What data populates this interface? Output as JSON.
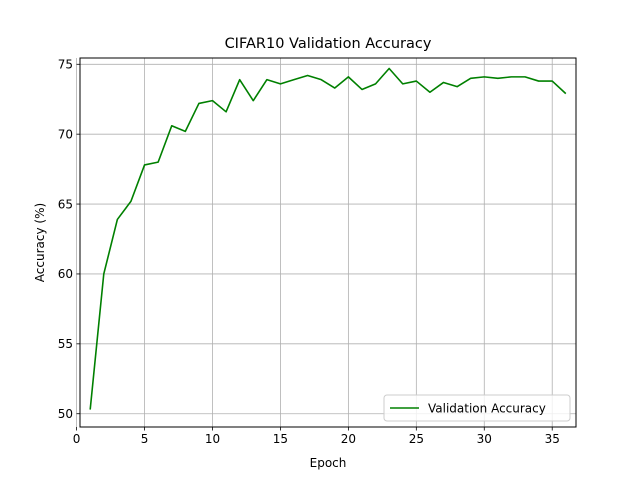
{
  "chart_data": {
    "type": "line",
    "title": "CIFAR10 Validation Accuracy",
    "xlabel": "Epoch",
    "ylabel": "Accuracy (%)",
    "xlim": [
      0.25,
      36.75
    ],
    "ylim": [
      49.05,
      75.45
    ],
    "xticks": [
      0,
      5,
      10,
      15,
      20,
      25,
      30,
      35
    ],
    "yticks": [
      50,
      55,
      60,
      65,
      70,
      75
    ],
    "grid": true,
    "legend_position": "lower-right",
    "series": [
      {
        "name": "Validation Accuracy",
        "color": "#008000",
        "x": [
          1,
          2,
          3,
          4,
          5,
          6,
          7,
          8,
          9,
          10,
          11,
          12,
          13,
          14,
          15,
          16,
          17,
          18,
          19,
          20,
          21,
          22,
          23,
          24,
          25,
          26,
          27,
          28,
          29,
          30,
          31,
          32,
          33,
          34,
          35,
          36
        ],
        "y": [
          50.3,
          60.0,
          63.9,
          65.2,
          67.8,
          68.0,
          70.6,
          70.2,
          72.2,
          72.4,
          71.6,
          73.9,
          72.4,
          73.9,
          73.6,
          73.9,
          74.2,
          73.9,
          73.3,
          74.1,
          73.2,
          73.6,
          74.7,
          73.6,
          73.8,
          73.0,
          73.7,
          73.4,
          74.0,
          74.1,
          74.0,
          74.1,
          74.1,
          73.8,
          73.8,
          72.9
        ]
      }
    ]
  }
}
